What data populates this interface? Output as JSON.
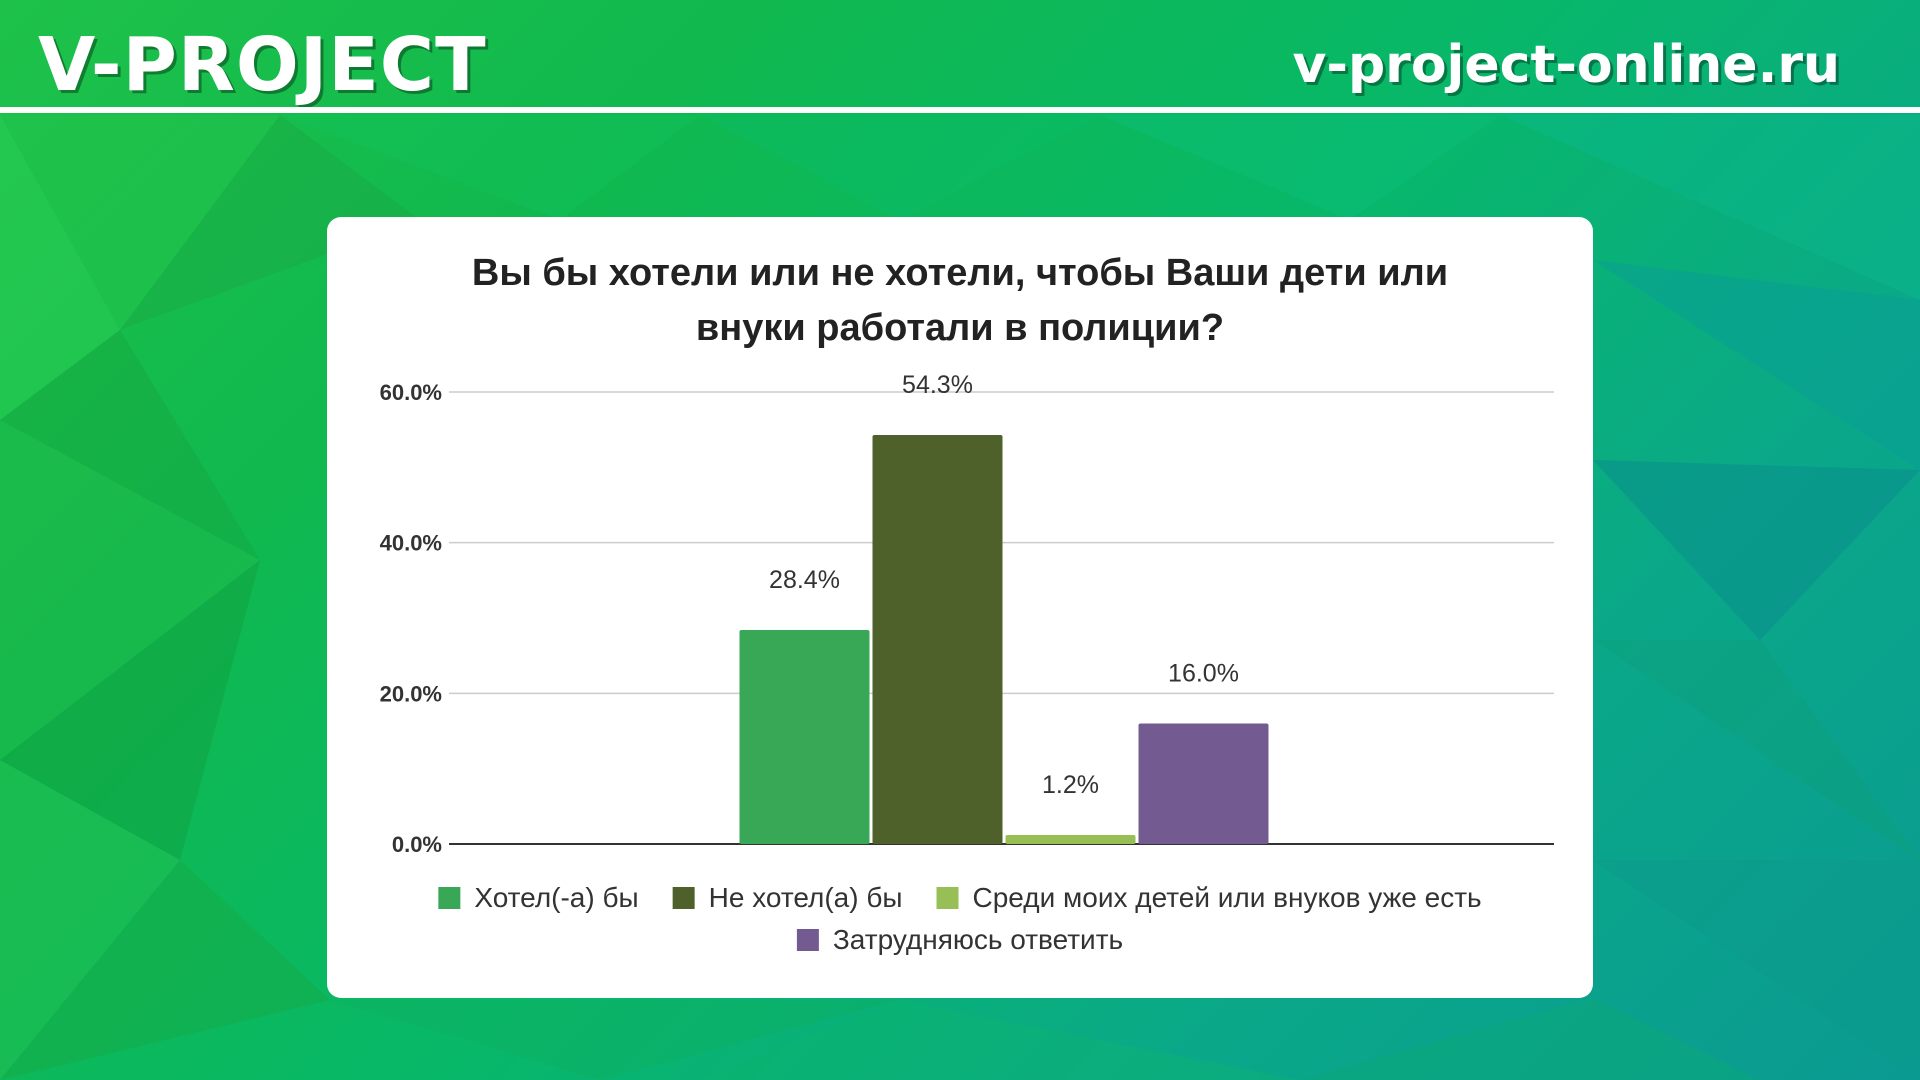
{
  "header": {
    "logo_text": "V-PROJECT",
    "url_text": "v-project-online.ru"
  },
  "colors": {
    "header_text": "#ffffff",
    "background_green": "#10b84e",
    "background_teal": "#0b9a92"
  },
  "chart_data": {
    "type": "bar",
    "title_lines": [
      "Вы бы хотели или не хотели, чтобы Ваши дети или",
      "внуки работали в полиции?"
    ],
    "categories": [
      ""
    ],
    "series": [
      {
        "name": "Хотел(-а) бы",
        "values": [
          28.4
        ],
        "label": "28.4%",
        "color": "#38a756"
      },
      {
        "name": "Не хотел(а) бы",
        "values": [
          54.3
        ],
        "label": "54.3%",
        "color": "#4e612b"
      },
      {
        "name": "Среди моих детей или внуков уже есть",
        "values": [
          1.2
        ],
        "label": "1.2%",
        "color": "#98bf55"
      },
      {
        "name": "Затрудняюсь ответить",
        "values": [
          16.0
        ],
        "label": "16.0%",
        "color": "#735b92"
      }
    ],
    "y_ticks": [
      0,
      20,
      40,
      60
    ],
    "y_tick_labels": [
      "0.0%",
      "20.0%",
      "40.0%",
      "60.0%"
    ],
    "ylim": [
      0,
      60
    ],
    "grid": true,
    "legend_position": "bottom"
  }
}
